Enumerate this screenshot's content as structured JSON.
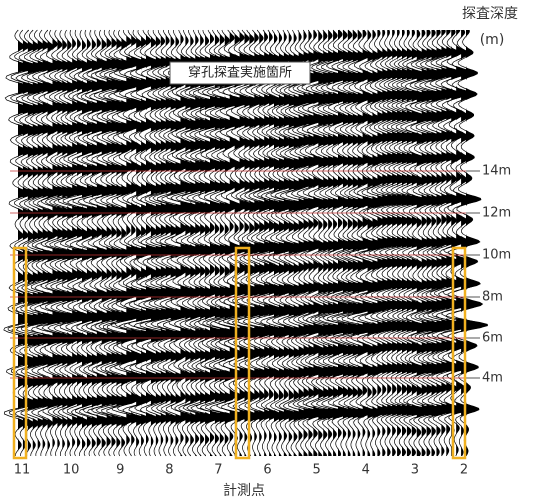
{
  "axis_title": "探査深度",
  "axis_unit": "(m)",
  "depth_labels": [
    "14m",
    "12m",
    "10m",
    "8m",
    "6m",
    "4m"
  ],
  "point_labels": [
    11,
    10,
    9,
    8,
    7,
    6,
    5,
    4,
    3,
    2
  ],
  "x_title": "計測点",
  "annotation": "穿孔探査実施箇所"
}
